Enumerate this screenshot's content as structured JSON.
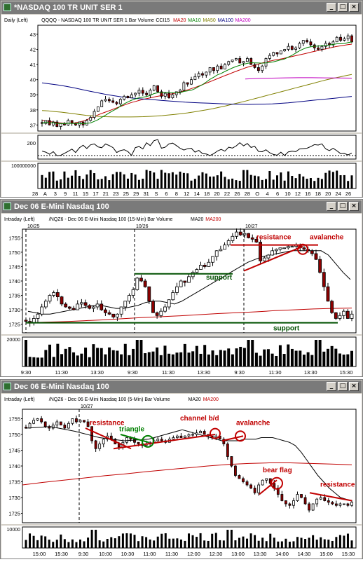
{
  "windows": [
    {
      "title": "*NASDAQ 100 TR UNIT SER 1",
      "header": [
        {
          "text": "Daily  (Left)",
          "color": "#000000"
        },
        {
          "text": "QQQQ - NASDAQ 100 TR UNIT SER 1  Bar  Volume",
          "color": "#000000"
        },
        {
          "text": "CCI15",
          "color": "#000000"
        },
        {
          "text": "MA20",
          "color": "#c00000"
        },
        {
          "text": "MA10",
          "color": "#008000"
        },
        {
          "text": "MA50",
          "color": "#808000"
        },
        {
          "text": "MA100",
          "color": "#000080"
        },
        {
          "text": "MA200",
          "color": "#c000c0"
        }
      ],
      "y_ticks": [
        "43",
        "42",
        "41",
        "40",
        "39",
        "38",
        "37"
      ],
      "osc_ticks": [
        "200"
      ],
      "vol_label": "100000000",
      "x_labels": [
        "28",
        "A",
        "3",
        "9",
        "11",
        "15",
        "17",
        "21",
        "23",
        "25",
        "29",
        "31",
        "S",
        "6",
        "8",
        "12",
        "14",
        "18",
        "20",
        "22",
        "26",
        "28",
        "O",
        "4",
        "6",
        "10",
        "12",
        "16",
        "18",
        "20",
        "24",
        "26"
      ]
    },
    {
      "title": "Dec 06  E-Mini Nasdaq 100",
      "header": [
        {
          "text": "Intraday  (Left)",
          "color": "#000000"
        },
        {
          "text": "/NQZ6 - Dec 06  E-Mini Nasdaq 100 (15-Min)  Bar  Volume",
          "color": "#000000"
        },
        {
          "text": "MA20",
          "color": "#000000"
        },
        {
          "text": "MA200",
          "color": "#c00000"
        }
      ],
      "date_labels": [
        "10/25",
        "10/26",
        "10/27"
      ],
      "y_ticks": [
        "1755",
        "1750",
        "1745",
        "1740",
        "1735",
        "1730",
        "1725"
      ],
      "vol_label": "20000",
      "x_labels": [
        "9:30",
        "11:30",
        "13:30",
        "9:30",
        "11:30",
        "13:30",
        "9:30",
        "11:30",
        "13:30",
        "15:30"
      ],
      "annotations": {
        "resistance": "resistance",
        "avalanche": "avalanche",
        "support_mid": "support",
        "support_low": "support"
      }
    },
    {
      "title": "Dec 06  E-Mini Nasdaq 100",
      "header": [
        {
          "text": "Intraday  (Left)",
          "color": "#000000"
        },
        {
          "text": "/NQZ6 - Dec 06  E-Mini Nasdaq 100 (5-Min)  Bar  Volume",
          "color": "#000000"
        },
        {
          "text": "MA20",
          "color": "#000000"
        },
        {
          "text": "MA200",
          "color": "#c00000"
        }
      ],
      "date_labels": [
        "10/27"
      ],
      "y_ticks": [
        "1755",
        "1750",
        "1745",
        "1740",
        "1735",
        "1730",
        "1725"
      ],
      "vol_label": "10000",
      "x_labels": [
        "15:00",
        "15:30",
        "9:30",
        "10:00",
        "10:30",
        "11:00",
        "11:30",
        "12:00",
        "12:30",
        "13:00",
        "13:30",
        "14:00",
        "14:30",
        "15:00",
        "15:30"
      ],
      "annotations": {
        "resistance": "resistance",
        "triangle": "triangle",
        "channel": "channel b/d",
        "avalanche": "avalanche",
        "bear_flag": "bear flag",
        "resistance2": "resistance"
      }
    }
  ],
  "colors": {
    "title_bg": "#7a7a7a",
    "bar_color": "#000000",
    "annotation": "#c00000",
    "support": "#005000",
    "triangle": "#008000"
  },
  "chart_data": [
    {
      "type": "bar",
      "title": "*NASDAQ 100 TR UNIT SER 1",
      "ylim": [
        36.6,
        43.6
      ],
      "series": [
        {
          "name": "QQQQ",
          "close": [
            37.1,
            37.3,
            37.0,
            37.2,
            36.9,
            37.1,
            37.0,
            37.3,
            37.1,
            37.0,
            37.2,
            37.0,
            37.3,
            37.5,
            37.9,
            38.2,
            38.6,
            38.7,
            38.6,
            38.5,
            38.4,
            38.7,
            38.9,
            38.8,
            39.0,
            39.1,
            39.3,
            39.1,
            39.0,
            39.3,
            39.6,
            39.2,
            38.9,
            39.1,
            38.8,
            39.0,
            39.2,
            39.3,
            39.8,
            39.7,
            40.0,
            40.2,
            40.4,
            40.3,
            40.5,
            40.8,
            40.6,
            40.9,
            40.7,
            41.0,
            41.2,
            41.3,
            41.4,
            41.1,
            41.2,
            41.4,
            41.0,
            40.8,
            40.6,
            40.9,
            41.4,
            41.6,
            41.8,
            41.7,
            41.9,
            42.0,
            42.2,
            42.0,
            42.1,
            42.4,
            42.6,
            42.5,
            42.3,
            42.1,
            42.0,
            42.2,
            42.4,
            42.3,
            42.5,
            42.8,
            42.6,
            42.7,
            42.9,
            42.5
          ]
        },
        {
          "name": "MA20",
          "values": [
            37.3,
            37.28,
            37.22,
            37.19,
            37.15,
            37.12,
            37.1,
            37.11,
            37.14,
            37.19,
            37.26,
            37.35,
            37.46,
            37.58,
            37.7,
            37.8,
            37.9,
            38.0,
            38.1,
            38.2,
            38.3,
            38.4,
            38.49,
            38.56,
            38.64,
            38.71,
            38.76,
            38.82,
            38.88,
            38.93,
            38.97,
            39.02,
            39.07,
            39.13,
            39.19,
            39.27,
            39.35,
            39.44,
            39.53,
            39.63,
            39.74,
            39.84,
            39.95,
            40.06,
            40.17,
            40.28,
            40.38,
            40.49,
            40.59,
            40.69,
            40.79,
            40.87,
            40.94,
            41.02,
            41.1,
            41.17,
            41.23,
            41.29,
            41.34,
            41.39,
            41.45,
            41.51,
            41.57,
            41.63,
            41.69,
            41.75,
            41.82,
            41.88,
            41.94,
            42.0,
            42.06,
            42.12,
            42.18,
            42.23,
            42.27,
            42.31,
            42.35
          ]
        },
        {
          "name": "MA50",
          "values": [
            37.96,
            37.93,
            37.89,
            37.85,
            37.8,
            37.75,
            37.69,
            37.64,
            37.6,
            37.57,
            37.55,
            37.54,
            37.53,
            37.53,
            37.53,
            37.54,
            37.55,
            37.57,
            37.59,
            37.62,
            37.66,
            37.7,
            37.75,
            37.8,
            37.86,
            37.93,
            38.0,
            38.08,
            38.17,
            38.26,
            38.36,
            38.46,
            38.56,
            38.67,
            38.78,
            38.89,
            39.0,
            39.11,
            39.22,
            39.33,
            39.44,
            39.55,
            39.66,
            39.77,
            39.88,
            39.99,
            40.08,
            40.17,
            40.26,
            40.34
          ]
        },
        {
          "name": "MA100",
          "values": [
            39.79,
            39.72,
            39.65,
            39.56,
            39.46,
            39.35,
            39.24,
            39.13,
            39.03,
            38.94,
            38.86,
            38.8,
            38.75,
            38.71,
            38.67,
            38.63,
            38.59,
            38.55,
            38.51,
            38.48,
            38.46,
            38.44,
            38.42,
            38.4,
            38.38,
            38.37,
            38.36,
            38.37,
            38.38,
            38.4,
            38.43,
            38.47,
            38.52,
            38.57,
            38.63,
            38.68,
            38.73,
            38.78,
            38.84,
            38.89
          ]
        },
        {
          "name": "MA200",
          "values": [
            40.04,
            40.08,
            40.1,
            40.12,
            40.13,
            40.13,
            40.12,
            40.11,
            40.1
          ]
        }
      ]
    },
    {
      "type": "bar",
      "title": "Dec 06  E-Mini Nasdaq 100 (15-Min)",
      "ylim": [
        1722,
        1758
      ],
      "series": [
        {
          "name": "NQZ6",
          "close": [
            1726.0,
            1725.5,
            1727.0,
            1728.5,
            1731.0,
            1733.0,
            1735.0,
            1736.0,
            1734.5,
            1732.0,
            1731.0,
            1730.5,
            1730.0,
            1732.0,
            1732.5,
            1731.5,
            1730.5,
            1731.0,
            1732.0,
            1730.0,
            1729.0,
            1728.5,
            1727.5,
            1728.5,
            1731.0,
            1733.0,
            1735.0,
            1737.0,
            1741.0,
            1740.0,
            1738.0,
            1733.0,
            1729.0,
            1728.0,
            1729.5,
            1731.0,
            1733.5,
            1736.0,
            1738.0,
            1740.0,
            1739.5,
            1741.5,
            1743.0,
            1744.0,
            1745.5,
            1745.0,
            1746.5,
            1748.5,
            1750.5,
            1751.0,
            1752.5,
            1754.0,
            1755.5,
            1757.0,
            1756.0,
            1756.5,
            1755.0,
            1754.5,
            1753.5,
            1747.0,
            1748.0,
            1749.0,
            1750.5,
            1751.0,
            1751.5,
            1751.5,
            1752.0,
            1752.0,
            1752.5,
            1751.5,
            1751.0,
            1750.5,
            1749.5,
            1747.5,
            1743.0,
            1738.0,
            1733.0,
            1729.0,
            1727.0,
            1728.0,
            1729.5,
            1727.0,
            1728.5
          ]
        },
        {
          "name": "MA20",
          "values": [
            1729.5,
            1729.0,
            1728.5,
            1728.5,
            1729.0,
            1729.5,
            1730.0,
            1730.5,
            1731.0,
            1731.5,
            1731.5,
            1731.0,
            1730.5,
            1730.5,
            1731.0,
            1731.5,
            1732.5,
            1733.0,
            1733.0,
            1732.5,
            1732.0,
            1733.0,
            1734.5,
            1736.0,
            1737.5,
            1739.0,
            1740.5,
            1742.0,
            1743.5,
            1745.0,
            1746.5,
            1747.5,
            1748.5,
            1749.0,
            1749.5,
            1750.0,
            1750.5,
            1750.5,
            1750.5,
            1750.5,
            1750.5,
            1749.0,
            1746.0,
            1743.0,
            1740.5
          ]
        },
        {
          "name": "MA200",
          "values": [
            1725.5,
            1725.7,
            1725.9,
            1726.2,
            1726.5,
            1726.9,
            1727.3,
            1727.6,
            1727.9,
            1728.3,
            1728.7,
            1729.0,
            1729.3,
            1729.7,
            1730.0,
            1730.3,
            1730.5,
            1730.6
          ]
        }
      ],
      "annotations": [
        "resistance",
        "avalanche",
        "support",
        "support"
      ]
    },
    {
      "type": "bar",
      "title": "Dec 06  E-Mini Nasdaq 100 (5-Min)",
      "ylim": [
        1722,
        1758
      ],
      "series": [
        {
          "name": "NQZ6",
          "close": [
            1752.0,
            1753.5,
            1754.5,
            1755.0,
            1754.0,
            1752.5,
            1752.0,
            1753.0,
            1754.0,
            1753.0,
            1752.0,
            1753.5,
            1755.0,
            1754.0,
            1754.5,
            1754.0,
            1752.5,
            1748.0,
            1745.5,
            1747.0,
            1748.5,
            1749.5,
            1748.5,
            1747.0,
            1746.0,
            1747.5,
            1749.0,
            1748.5,
            1747.5,
            1747.0,
            1746.5,
            1747.0,
            1747.5,
            1748.0,
            1748.5,
            1748.0,
            1747.5,
            1748.5,
            1749.0,
            1749.5,
            1749.0,
            1749.5,
            1750.0,
            1750.0,
            1750.5,
            1751.0,
            1750.0,
            1749.5,
            1749.0,
            1749.5,
            1748.5,
            1747.0,
            1743.0,
            1740.0,
            1737.0,
            1736.0,
            1735.0,
            1734.0,
            1733.0,
            1731.5,
            1734.0,
            1735.5,
            1736.0,
            1734.5,
            1733.0,
            1731.0,
            1729.0,
            1728.0,
            1727.5,
            1729.0,
            1731.0,
            1730.0,
            1728.0,
            1726.0,
            1728.0,
            1729.5,
            1730.0,
            1729.0,
            1728.5,
            1728.0,
            1727.5,
            1728.0,
            1728.0,
            1727.5,
            1728.5
          ]
        },
        {
          "name": "MA20",
          "values": [
            1751.5,
            1751.0,
            1750.5,
            1750.0,
            1749.5,
            1749.0,
            1748.5,
            1748.0,
            1748.0,
            1748.0,
            1748.0,
            1748.5,
            1748.5,
            1748.5,
            1749.0,
            1749.0,
            1749.0,
            1748.5,
            1748.0,
            1747.5,
            1746.5,
            1744.5,
            1742.0,
            1739.5,
            1737.0,
            1735.0,
            1733.0,
            1731.5,
            1730.0,
            1729.5,
            1729.0
          ]
        },
        {
          "name": "MA200",
          "values": [
            1734.0,
            1734.8,
            1735.5,
            1736.2,
            1736.9,
            1737.5,
            1738.2,
            1738.8,
            1739.4,
            1740.0,
            1740.5,
            1740.8,
            1741.0,
            1741.0,
            1740.8,
            1740.6,
            1740.4
          ]
        }
      ],
      "annotations": [
        "resistance",
        "triangle",
        "channel b/d",
        "avalanche",
        "bear flag",
        "resistance"
      ]
    }
  ]
}
